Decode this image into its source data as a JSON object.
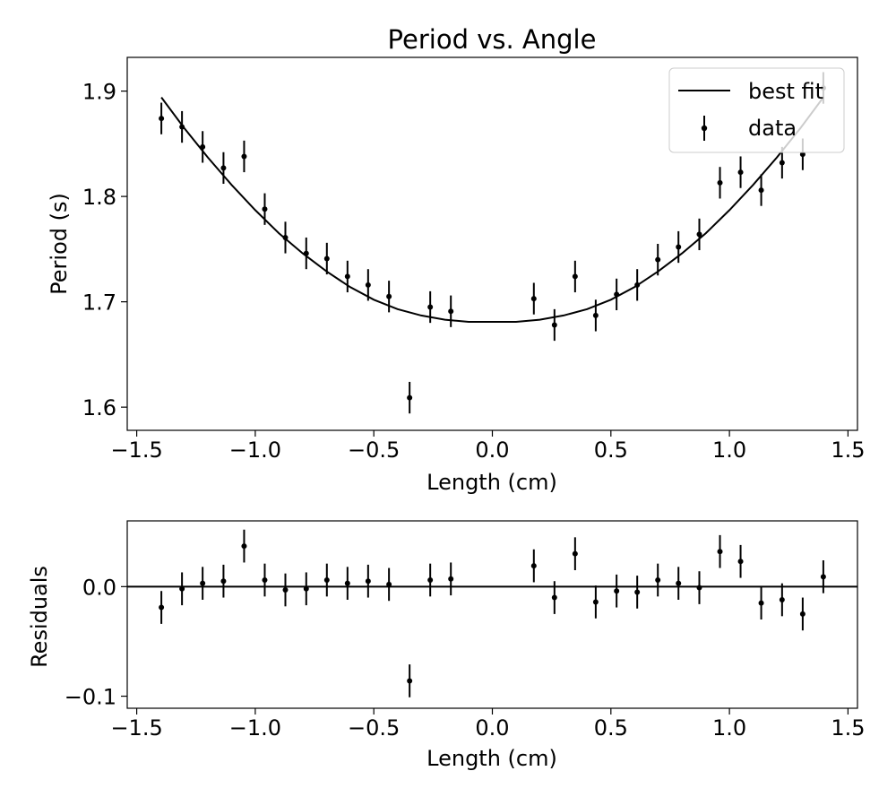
{
  "chart_data": [
    {
      "type": "scatter",
      "title": "Period vs. Angle",
      "xlabel": "Length (cm)",
      "ylabel": "Period (s)",
      "xlim": [
        -1.54,
        1.54
      ],
      "ylim": [
        1.578,
        1.932
      ],
      "xticks": [
        -1.5,
        -1.0,
        -0.5,
        0.0,
        0.5,
        1.0,
        1.5
      ],
      "xtick_labels": [
        "−1.5",
        "−1.0",
        "−0.5",
        "0.0",
        "0.5",
        "1.0",
        "1.5"
      ],
      "yticks": [
        1.6,
        1.7,
        1.8,
        1.9
      ],
      "ytick_labels": [
        "1.6",
        "1.7",
        "1.8",
        "1.9"
      ],
      "grid": false,
      "legend_position": "top-right",
      "series": [
        {
          "name": "best fit",
          "kind": "line",
          "color": "#000000",
          "x": [
            -1.396,
            -1.3,
            -1.2,
            -1.1,
            -1.0,
            -0.9,
            -0.8,
            -0.7,
            -0.6,
            -0.5,
            -0.4,
            -0.3,
            -0.2,
            -0.1,
            0.0,
            0.1,
            0.2,
            0.3,
            0.4,
            0.5,
            0.6,
            0.7,
            0.8,
            0.9,
            1.0,
            1.1,
            1.2,
            1.3,
            1.396
          ],
          "y": [
            1.894,
            1.865,
            1.837,
            1.811,
            1.787,
            1.765,
            1.746,
            1.729,
            1.714,
            1.702,
            1.693,
            1.687,
            1.683,
            1.681,
            1.681,
            1.681,
            1.683,
            1.687,
            1.693,
            1.702,
            1.714,
            1.729,
            1.746,
            1.765,
            1.787,
            1.811,
            1.837,
            1.865,
            1.894
          ]
        },
        {
          "name": "data",
          "kind": "errorbar",
          "color": "#000000",
          "yerr": 0.015,
          "x": [
            -1.396,
            -1.309,
            -1.222,
            -1.134,
            -1.047,
            -0.96,
            -0.873,
            -0.785,
            -0.698,
            -0.611,
            -0.524,
            -0.436,
            -0.349,
            -0.262,
            -0.175,
            0.175,
            0.262,
            0.349,
            0.436,
            0.524,
            0.611,
            0.698,
            0.785,
            0.873,
            0.96,
            1.047,
            1.134,
            1.222,
            1.309,
            1.396
          ],
          "y": [
            1.874,
            1.866,
            1.847,
            1.827,
            1.838,
            1.788,
            1.761,
            1.746,
            1.741,
            1.724,
            1.716,
            1.705,
            1.609,
            1.695,
            1.691,
            1.703,
            1.678,
            1.724,
            1.687,
            1.707,
            1.716,
            1.74,
            1.752,
            1.764,
            1.813,
            1.823,
            1.806,
            1.832,
            1.84,
            1.903
          ]
        }
      ]
    },
    {
      "type": "scatter",
      "title": "",
      "xlabel": "Length (cm)",
      "ylabel": "Residuals",
      "xlim": [
        -1.54,
        1.54
      ],
      "ylim": [
        -0.111,
        0.06
      ],
      "xticks": [
        -1.5,
        -1.0,
        -0.5,
        0.0,
        0.5,
        1.0,
        1.5
      ],
      "xtick_labels": [
        "−1.5",
        "−1.0",
        "−0.5",
        "0.0",
        "0.5",
        "1.0",
        "1.5"
      ],
      "yticks": [
        -0.1,
        0.0
      ],
      "ytick_labels": [
        "−0.1",
        "0.0"
      ],
      "grid": false,
      "reference_line_y": 0.0,
      "series": [
        {
          "kind": "errorbar",
          "color": "#000000",
          "yerr": 0.015,
          "x": [
            -1.396,
            -1.309,
            -1.222,
            -1.134,
            -1.047,
            -0.96,
            -0.873,
            -0.785,
            -0.698,
            -0.611,
            -0.524,
            -0.436,
            -0.349,
            -0.262,
            -0.175,
            0.175,
            0.262,
            0.349,
            0.436,
            0.524,
            0.611,
            0.698,
            0.785,
            0.873,
            0.96,
            1.047,
            1.134,
            1.222,
            1.309,
            1.396
          ],
          "y": [
            -0.019,
            -0.002,
            0.003,
            0.005,
            0.037,
            0.006,
            -0.003,
            -0.002,
            0.006,
            0.003,
            0.005,
            0.002,
            -0.086,
            0.006,
            0.007,
            0.019,
            -0.01,
            0.03,
            -0.014,
            -0.004,
            -0.005,
            0.006,
            0.003,
            -0.001,
            0.032,
            0.023,
            -0.015,
            -0.012,
            -0.025,
            0.009
          ]
        }
      ]
    }
  ]
}
